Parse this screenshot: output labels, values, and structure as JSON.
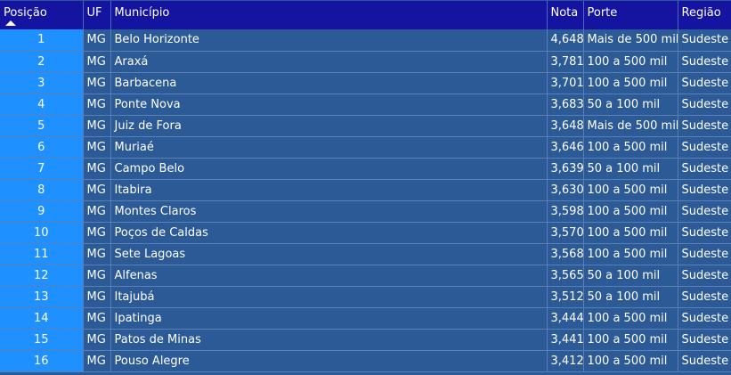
{
  "columns": [
    "Posição",
    "UF",
    "Município",
    "Nota",
    "Porte",
    "Região"
  ],
  "rows": [
    [
      "1",
      "MG",
      "Belo Horizonte",
      "4,648",
      "Mais de 500 mil",
      "Sudeste"
    ],
    [
      "2",
      "MG",
      "Araxá",
      "3,781",
      "100 a 500 mil",
      "Sudeste"
    ],
    [
      "3",
      "MG",
      "Barbacena",
      "3,701",
      "100 a 500 mil",
      "Sudeste"
    ],
    [
      "4",
      "MG",
      "Ponte Nova",
      "3,683",
      "50 a 100 mil",
      "Sudeste"
    ],
    [
      "5",
      "MG",
      "Juiz de Fora",
      "3,648",
      "Mais de 500 mil",
      "Sudeste"
    ],
    [
      "6",
      "MG",
      "Muriaé",
      "3,646",
      "100 a 500 mil",
      "Sudeste"
    ],
    [
      "7",
      "MG",
      "Campo Belo",
      "3,639",
      "50 a 100 mil",
      "Sudeste"
    ],
    [
      "8",
      "MG",
      "Itabira",
      "3,630",
      "100 a 500 mil",
      "Sudeste"
    ],
    [
      "9",
      "MG",
      "Montes Claros",
      "3,598",
      "100 a 500 mil",
      "Sudeste"
    ],
    [
      "10",
      "MG",
      "Poços de Caldas",
      "3,570",
      "100 a 500 mil",
      "Sudeste"
    ],
    [
      "11",
      "MG",
      "Sete Lagoas",
      "3,568",
      "100 a 500 mil",
      "Sudeste"
    ],
    [
      "12",
      "MG",
      "Alfenas",
      "3,565",
      "50 a 100 mil",
      "Sudeste"
    ],
    [
      "13",
      "MG",
      "Itajubá",
      "3,512",
      "50 a 100 mil",
      "Sudeste"
    ],
    [
      "14",
      "MG",
      "Ipatinga",
      "3,444",
      "100 a 500 mil",
      "Sudeste"
    ],
    [
      "15",
      "MG",
      "Patos de Minas",
      "3,441",
      "100 a 500 mil",
      "Sudeste"
    ],
    [
      "16",
      "MG",
      "Pouso Alegre",
      "3,412",
      "100 a 500 mil",
      "Sudeste"
    ]
  ],
  "sort": {
    "column": "Posição",
    "direction": "ascending",
    "icon": "sort-up-icon"
  },
  "colors": {
    "header": "#1414a0",
    "row": "#2b5a96",
    "position_column": "#1e90ff"
  }
}
